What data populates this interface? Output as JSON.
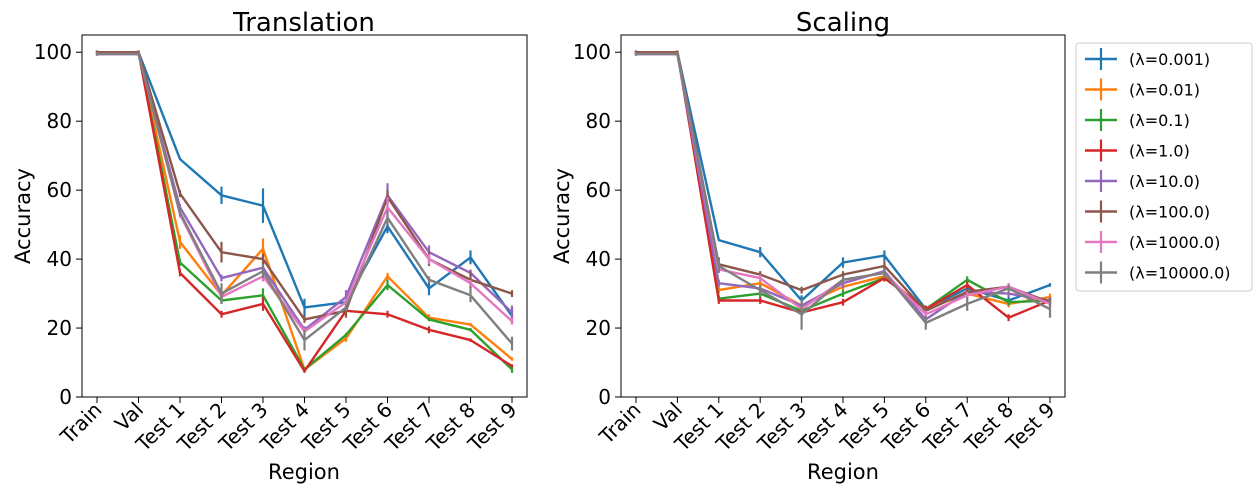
{
  "figure": {
    "legend_labels": [
      "(λ=0.001)",
      "(λ=0.01)",
      "(λ=0.1)",
      "(λ=1.0)",
      "(λ=10.0)",
      "(λ=100.0)",
      "(λ=1000.0)",
      "(λ=10000.0)"
    ]
  },
  "chart_data": [
    {
      "type": "line",
      "title": "Translation",
      "xlabel": "Region",
      "ylabel": "Accuracy",
      "categories": [
        "Train",
        "Val",
        "Test 1",
        "Test 2",
        "Test 3",
        "Test 4",
        "Test 5",
        "Test 6",
        "Test 7",
        "Test 8",
        "Test 9"
      ],
      "ylim": [
        0,
        105
      ],
      "yticks": [
        0,
        20,
        40,
        60,
        80,
        100
      ],
      "grid": false,
      "error_bars": true,
      "series": [
        {
          "name": "(λ=0.001)",
          "color": "#1f77b4",
          "values": [
            100,
            100,
            69,
            58.5,
            55.5,
            26,
            27.5,
            49.5,
            31.5,
            40.5,
            23.5
          ],
          "errors": [
            0.5,
            0.5,
            0,
            2.5,
            5,
            2.5,
            0,
            2,
            2,
            2,
            2
          ]
        },
        {
          "name": "(λ=0.01)",
          "color": "#ff7f0e",
          "values": [
            100,
            100,
            45,
            29.5,
            43,
            8,
            17,
            35,
            23,
            21,
            11
          ],
          "errors": [
            0.5,
            0.5,
            2,
            1,
            3,
            0.5,
            1,
            1,
            1,
            0.5,
            0.5
          ]
        },
        {
          "name": "(λ=0.1)",
          "color": "#2ca02c",
          "values": [
            100,
            100,
            39,
            28,
            29.5,
            8,
            18,
            32.5,
            22.5,
            19.5,
            8
          ],
          "errors": [
            0.5,
            0.5,
            1,
            1,
            2,
            0.5,
            0.5,
            1.5,
            0.5,
            0.5,
            1
          ]
        },
        {
          "name": "(λ=1.0)",
          "color": "#d62728",
          "values": [
            100,
            100,
            36,
            24,
            27,
            7.5,
            25,
            24,
            19.5,
            16.5,
            9
          ],
          "errors": [
            0.5,
            0.5,
            1,
            1,
            2,
            0.5,
            0.5,
            1,
            1,
            0.5,
            0.5
          ]
        },
        {
          "name": "(λ=10.0)",
          "color": "#9467bd",
          "values": [
            99.5,
            99.5,
            55,
            34.5,
            37.5,
            19.5,
            29,
            58.5,
            42,
            36,
            24.5
          ],
          "errors": [
            0.5,
            0.5,
            1,
            1,
            1.5,
            1,
            2,
            3.5,
            2,
            1,
            2
          ]
        },
        {
          "name": "(λ=100.0)",
          "color": "#8c564b",
          "values": [
            100,
            100,
            59,
            42,
            40,
            22.5,
            25,
            58,
            40,
            34,
            30
          ],
          "errors": [
            0.5,
            0.5,
            1,
            3,
            1.5,
            1,
            2,
            2,
            2,
            2.5,
            1
          ]
        },
        {
          "name": "(λ=1000.0)",
          "color": "#e377c2",
          "values": [
            99.5,
            99.5,
            53,
            29,
            35,
            19,
            27.5,
            55,
            40,
            33,
            22
          ],
          "errors": [
            0.5,
            0.5,
            1,
            1,
            1.5,
            1,
            1,
            3,
            1.5,
            1,
            1
          ]
        },
        {
          "name": "(λ=10000.0)",
          "color": "#7f7f7f",
          "values": [
            99.5,
            99.5,
            53.5,
            30,
            36.5,
            16.5,
            26,
            52,
            34,
            29.5,
            15.5
          ],
          "errors": [
            0.5,
            0.5,
            1,
            3,
            2,
            3,
            1,
            2,
            1,
            2,
            2
          ]
        }
      ]
    },
    {
      "type": "line",
      "title": "Scaling",
      "xlabel": "Region",
      "ylabel": "Accuracy",
      "categories": [
        "Train",
        "Val",
        "Test 1",
        "Test 2",
        "Test 3",
        "Test 4",
        "Test 5",
        "Test 6",
        "Test 7",
        "Test 8",
        "Test 9"
      ],
      "ylim": [
        0,
        105
      ],
      "yticks": [
        0,
        20,
        40,
        60,
        80,
        100
      ],
      "grid": false,
      "legend_position": "outside-right",
      "error_bars": true,
      "series": [
        {
          "name": "(λ=0.001)",
          "color": "#1f77b4",
          "values": [
            100,
            100,
            45.5,
            42,
            28,
            39,
            41,
            25.5,
            31.5,
            28,
            32.5
          ],
          "errors": [
            0.5,
            0.5,
            0,
            1.5,
            1.5,
            1.5,
            1.5,
            1,
            1,
            1,
            0.5
          ]
        },
        {
          "name": "(λ=0.01)",
          "color": "#ff7f0e",
          "values": [
            100,
            100,
            31,
            33,
            26.5,
            32,
            35,
            25.5,
            30,
            27,
            29
          ],
          "errors": [
            0.5,
            0.5,
            1,
            1,
            1,
            1.5,
            1,
            1,
            1,
            1,
            1
          ]
        },
        {
          "name": "(λ=0.1)",
          "color": "#2ca02c",
          "values": [
            100,
            100,
            28.5,
            30,
            25,
            30,
            34.5,
            25.5,
            34,
            27.5,
            28
          ],
          "errors": [
            0.5,
            0.5,
            1,
            1,
            1,
            1,
            1,
            1,
            1,
            1,
            1
          ]
        },
        {
          "name": "(λ=1.0)",
          "color": "#d62728",
          "values": [
            100,
            100,
            28,
            28,
            24.5,
            27.5,
            34.5,
            25.5,
            32.5,
            23,
            28
          ],
          "errors": [
            0.5,
            0.5,
            1,
            1,
            1,
            1,
            1,
            1,
            1,
            1,
            1
          ]
        },
        {
          "name": "(λ=10.0)",
          "color": "#9467bd",
          "values": [
            99.5,
            99.5,
            33,
            31.5,
            26.5,
            33,
            36.5,
            22.5,
            30.5,
            30,
            28
          ],
          "errors": [
            0.5,
            0.5,
            1,
            1,
            1,
            1.5,
            1.5,
            1,
            1,
            1,
            1
          ]
        },
        {
          "name": "(λ=100.0)",
          "color": "#8c564b",
          "values": [
            100,
            100,
            38.5,
            35.5,
            31,
            35.5,
            38,
            25,
            30.5,
            32,
            27.5
          ],
          "errors": [
            0.5,
            0.5,
            2,
            1,
            1,
            1,
            1.5,
            1,
            1,
            1,
            1
          ]
        },
        {
          "name": "(λ=1000.0)",
          "color": "#e377c2",
          "values": [
            99.5,
            99.5,
            37,
            34.5,
            25.5,
            34,
            36,
            24,
            29.5,
            32,
            27
          ],
          "errors": [
            0.5,
            0.5,
            1,
            1,
            1,
            1,
            1,
            1,
            1,
            1,
            1
          ]
        },
        {
          "name": "(λ=10000.0)",
          "color": "#7f7f7f",
          "values": [
            99.5,
            99.5,
            38,
            31,
            24,
            34,
            36,
            21.5,
            27,
            31.5,
            25.5
          ],
          "errors": [
            0.5,
            0.5,
            2,
            1.5,
            4.5,
            1,
            1.5,
            2,
            2,
            1,
            2.5
          ]
        }
      ]
    }
  ]
}
